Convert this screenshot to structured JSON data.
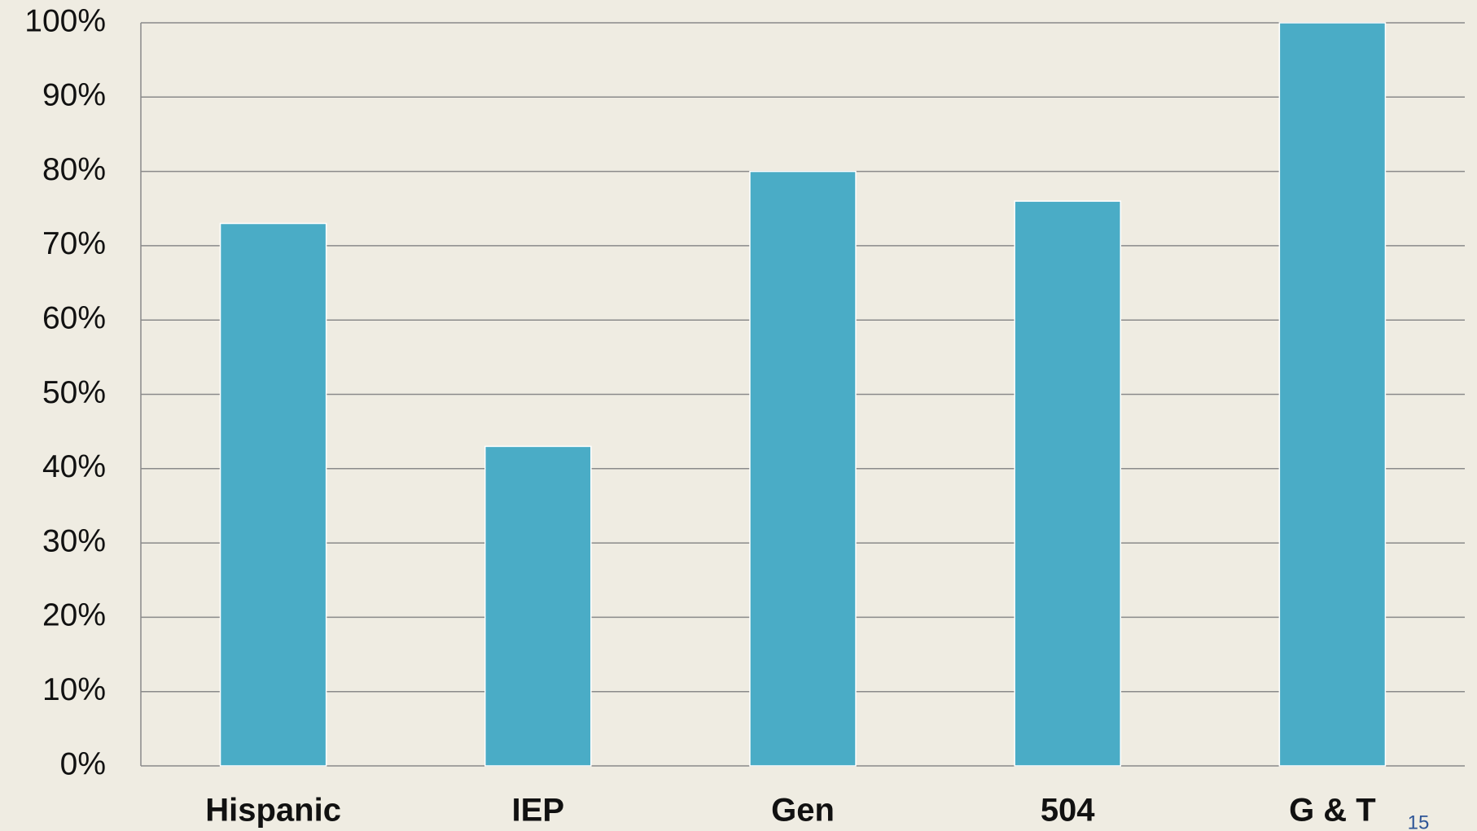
{
  "chart_data": {
    "type": "bar",
    "categories": [
      "Hispanic",
      "IEP",
      "Gen",
      "504",
      "G & T"
    ],
    "values": [
      73,
      43,
      80,
      76,
      100
    ],
    "color": "#4aacc6",
    "ylim": [
      0,
      100
    ],
    "yticks": [
      {
        "value": 0,
        "label": "0%"
      },
      {
        "value": 10,
        "label": "10%"
      },
      {
        "value": 20,
        "label": "20%"
      },
      {
        "value": 30,
        "label": "30%"
      },
      {
        "value": 40,
        "label": "40%"
      },
      {
        "value": 50,
        "label": "50%"
      },
      {
        "value": 60,
        "label": "60%"
      },
      {
        "value": 70,
        "label": "70%"
      },
      {
        "value": 80,
        "label": "80%"
      },
      {
        "value": 90,
        "label": "90%"
      },
      {
        "value": 100,
        "label": "100%"
      }
    ],
    "grid": true
  },
  "page_number": "15"
}
